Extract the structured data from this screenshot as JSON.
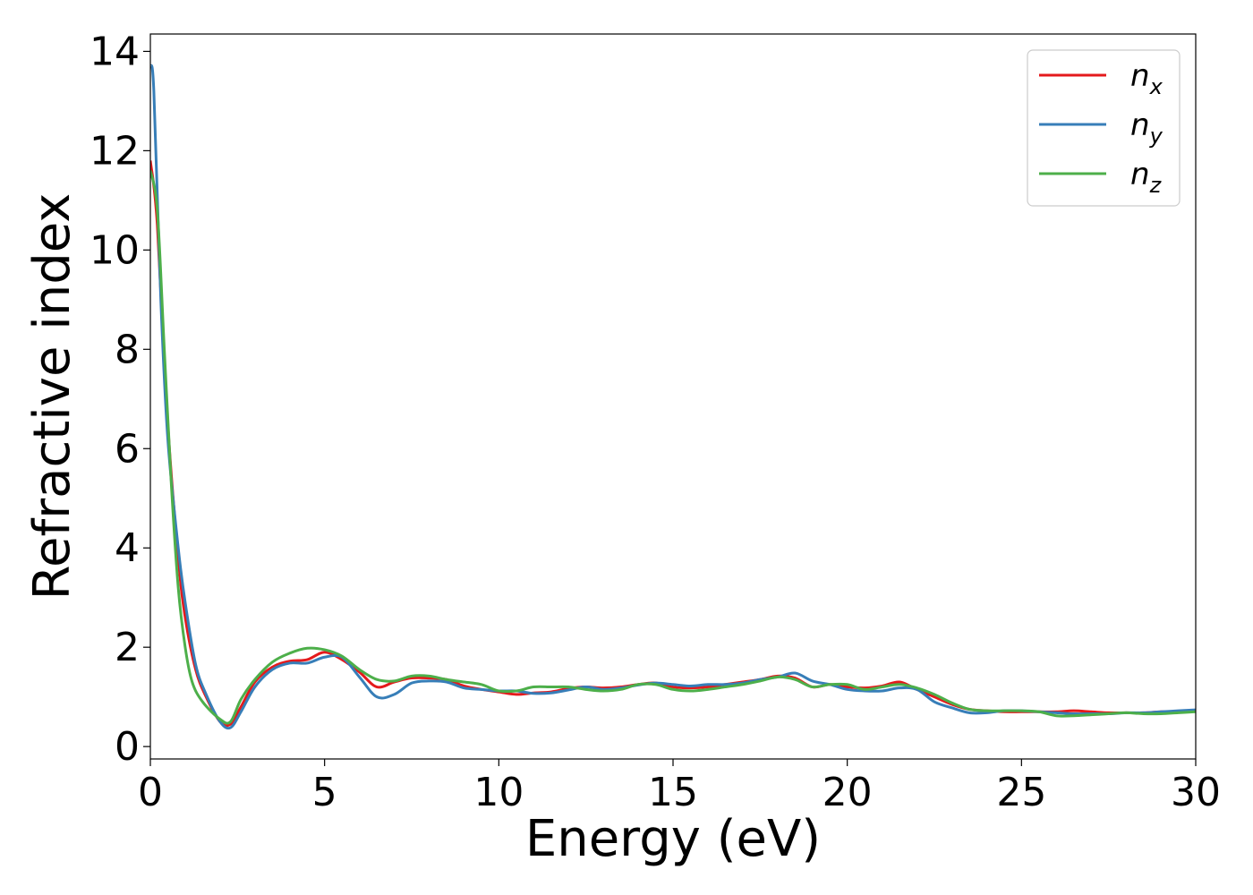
{
  "chart_data": {
    "type": "line",
    "xlabel": "Energy (eV)",
    "ylabel": "Refractive index",
    "xlim": [
      0,
      30
    ],
    "ylim": [
      -0.25,
      14.35
    ],
    "xticks": [
      0,
      5,
      10,
      15,
      20,
      25,
      30
    ],
    "xtick_labels": [
      "0",
      "5",
      "10",
      "15",
      "20",
      "25",
      "30"
    ],
    "yticks": [
      0,
      2,
      4,
      6,
      8,
      10,
      12,
      14
    ],
    "ytick_labels": [
      "0",
      "2",
      "4",
      "6",
      "8",
      "10",
      "12",
      "14"
    ],
    "grid": false,
    "legend_position": "top-right",
    "series": [
      {
        "name": "n",
        "subscript": "x",
        "color": "#e41a1c",
        "x": [
          0,
          0.2,
          0.5,
          0.8,
          1.0,
          1.3,
          1.6,
          2.0,
          2.3,
          2.6,
          3.0,
          3.5,
          4.0,
          4.5,
          5.0,
          5.5,
          6.0,
          6.5,
          7.0,
          7.5,
          8.0,
          8.5,
          9.0,
          9.5,
          10.0,
          10.5,
          11.0,
          11.5,
          12.0,
          12.5,
          13.0,
          13.5,
          14.0,
          14.5,
          15.0,
          15.5,
          16.0,
          16.5,
          17.0,
          17.5,
          18.0,
          18.5,
          19.0,
          19.5,
          20.0,
          20.5,
          21.0,
          21.5,
          22.0,
          22.5,
          23.0,
          23.5,
          24.0,
          24.5,
          25.0,
          25.5,
          26.0,
          26.5,
          27.0,
          27.5,
          28.0,
          28.5,
          29.0,
          29.5,
          30.0
        ],
        "y": [
          11.8,
          10.5,
          6.5,
          3.8,
          2.6,
          1.55,
          1.0,
          0.5,
          0.45,
          0.8,
          1.3,
          1.6,
          1.72,
          1.75,
          1.9,
          1.75,
          1.5,
          1.2,
          1.3,
          1.38,
          1.38,
          1.35,
          1.22,
          1.15,
          1.1,
          1.05,
          1.08,
          1.1,
          1.17,
          1.2,
          1.18,
          1.2,
          1.25,
          1.28,
          1.2,
          1.18,
          1.2,
          1.25,
          1.3,
          1.35,
          1.42,
          1.38,
          1.2,
          1.25,
          1.2,
          1.18,
          1.22,
          1.3,
          1.15,
          1.0,
          0.85,
          0.75,
          0.72,
          0.7,
          0.7,
          0.7,
          0.7,
          0.72,
          0.7,
          0.68,
          0.68,
          0.68,
          0.7,
          0.7,
          0.72
        ]
      },
      {
        "name": "n",
        "subscript": "y",
        "color": "#377eb8",
        "x": [
          0,
          0.1,
          0.3,
          0.5,
          0.8,
          1.0,
          1.3,
          1.6,
          2.0,
          2.3,
          2.6,
          3.0,
          3.5,
          4.0,
          4.5,
          5.0,
          5.5,
          6.0,
          6.5,
          7.0,
          7.5,
          8.0,
          8.5,
          9.0,
          9.5,
          10.0,
          10.5,
          11.0,
          11.5,
          12.0,
          12.5,
          13.0,
          13.5,
          14.0,
          14.5,
          15.0,
          15.5,
          16.0,
          16.5,
          17.0,
          17.5,
          18.0,
          18.5,
          19.0,
          19.5,
          20.0,
          20.5,
          21.0,
          21.5,
          22.0,
          22.5,
          23.0,
          23.5,
          24.0,
          24.5,
          25.0,
          25.5,
          26.0,
          26.5,
          27.0,
          27.5,
          28.0,
          28.5,
          29.0,
          29.5,
          30.0
        ],
        "y": [
          13.7,
          13.2,
          9.0,
          6.2,
          4.0,
          2.9,
          1.65,
          1.05,
          0.5,
          0.38,
          0.7,
          1.2,
          1.55,
          1.68,
          1.68,
          1.8,
          1.8,
          1.4,
          1.0,
          1.05,
          1.28,
          1.32,
          1.3,
          1.18,
          1.15,
          1.12,
          1.12,
          1.07,
          1.08,
          1.14,
          1.2,
          1.15,
          1.18,
          1.24,
          1.28,
          1.25,
          1.22,
          1.25,
          1.25,
          1.28,
          1.35,
          1.4,
          1.48,
          1.32,
          1.25,
          1.15,
          1.12,
          1.12,
          1.18,
          1.15,
          0.9,
          0.78,
          0.68,
          0.68,
          0.72,
          0.72,
          0.7,
          0.68,
          0.66,
          0.66,
          0.66,
          0.68,
          0.68,
          0.7,
          0.72,
          0.74
        ]
      },
      {
        "name": "n",
        "subscript": "z",
        "color": "#4daf4a",
        "x": [
          0,
          0.2,
          0.4,
          0.6,
          0.8,
          1.0,
          1.2,
          1.5,
          2.0,
          2.3,
          2.6,
          3.0,
          3.5,
          4.0,
          4.5,
          5.0,
          5.5,
          6.0,
          6.5,
          7.0,
          7.5,
          8.0,
          8.5,
          9.0,
          9.5,
          10.0,
          10.5,
          11.0,
          11.5,
          12.0,
          12.5,
          13.0,
          13.5,
          14.0,
          14.5,
          15.0,
          15.5,
          16.0,
          16.5,
          17.0,
          17.5,
          18.0,
          18.5,
          19.0,
          19.5,
          20.0,
          20.5,
          21.0,
          21.5,
          22.0,
          22.5,
          23.0,
          23.5,
          24.0,
          24.5,
          25.0,
          25.5,
          26.0,
          26.5,
          27.0,
          27.5,
          28.0,
          28.5,
          29.0,
          29.5,
          30.0
        ],
        "y": [
          11.6,
          10.8,
          8.0,
          5.3,
          3.2,
          2.0,
          1.3,
          0.9,
          0.55,
          0.5,
          0.95,
          1.35,
          1.7,
          1.88,
          1.98,
          1.95,
          1.82,
          1.55,
          1.35,
          1.32,
          1.42,
          1.42,
          1.35,
          1.3,
          1.25,
          1.12,
          1.12,
          1.2,
          1.2,
          1.2,
          1.15,
          1.12,
          1.15,
          1.25,
          1.25,
          1.15,
          1.12,
          1.15,
          1.2,
          1.25,
          1.32,
          1.4,
          1.35,
          1.2,
          1.25,
          1.25,
          1.15,
          1.2,
          1.25,
          1.18,
          1.05,
          0.88,
          0.75,
          0.72,
          0.72,
          0.72,
          0.7,
          0.62,
          0.62,
          0.64,
          0.66,
          0.68,
          0.66,
          0.66,
          0.68,
          0.7
        ]
      }
    ]
  }
}
